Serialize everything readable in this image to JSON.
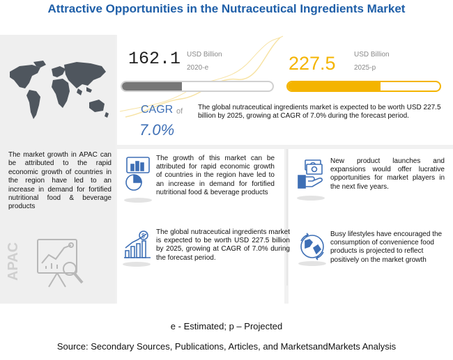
{
  "title": "Attractive Opportunities in the Nutraceutical Ingredients Market",
  "left_panel": {
    "text": "The market growth in APAC can be attributed to the rapid economic growth of countries in the region have led to an increase in demand for fortified nutritional food & beverage products",
    "region_label": "APAC"
  },
  "market_2020": {
    "value": "162.1",
    "unit": "USD Billion",
    "year": "2020-e",
    "bar_fraction": 0.4
  },
  "market_2025": {
    "value": "227.5",
    "unit": "USD Billion",
    "year": "2025-p",
    "bar_fraction": 0.61
  },
  "cagr": {
    "label": "CAGR",
    "of": "of",
    "value": "7.0%",
    "text": "The global nutraceutical ingredients market is expected to be worth USD 227.5 billion by 2025, growing at CAGR of 7.0% during the forecast period."
  },
  "cards": {
    "growth": "The growth of this market can be attributed for rapid economic growth of countries in the region have led to an increase in demand for fortified nutritional food & beverage products",
    "global": "The global nutraceutical ingredients market is expected to be worth USD 227.5 billion by 2025, growing at CAGR of 7.0% during the forecast period.",
    "launches": "New product launches and expansions would offer lucrative opportunities for market players in the next five years.",
    "lifestyle": "Busy lifestyles have encouraged the consumption of convenience food products is projected to reflect positively on the market growth"
  },
  "colors": {
    "title": "#1f5fa8",
    "accent_blue": "#3e6fb5",
    "accent_yellow": "#f4b400",
    "bar_gray": "#777777"
  },
  "icons": [
    "world-map-icon",
    "analysis-chart-icon",
    "pie-chart-icon",
    "money-hand-icon",
    "growth-chart-icon",
    "globe-icon"
  ],
  "footnote": "e - Estimated; p – Projected",
  "source": "Source: Secondary Sources, Publications, Articles, and MarketsandMarkets Analysis"
}
